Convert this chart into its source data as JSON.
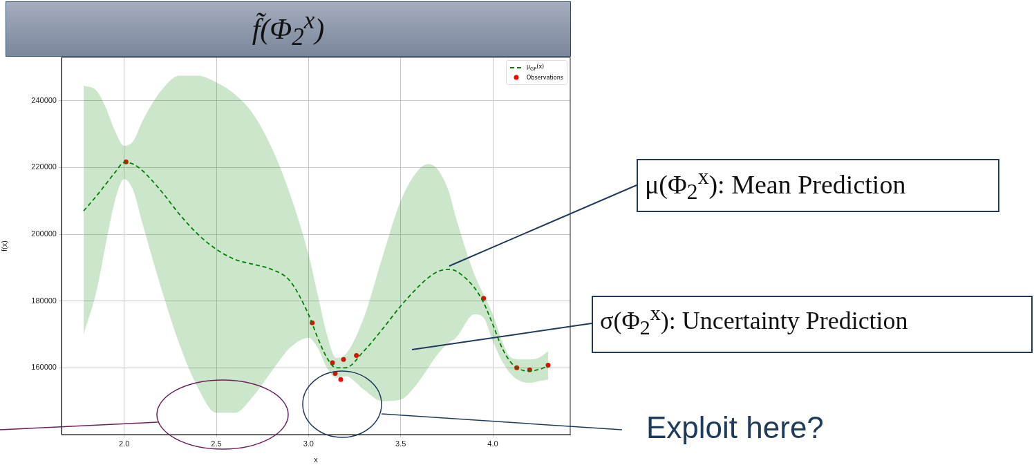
{
  "chart_data": {
    "type": "line",
    "title": "f̃(Φ$_{2}$$^{x}$)",
    "xlabel": "x",
    "ylabel": "f(x)",
    "xlim": [
      1.66,
      4.42
    ],
    "ylim": [
      140000,
      253000
    ],
    "xticks": [
      {
        "value": 2,
        "label": "2.0"
      },
      2.5,
      {
        "value": 3,
        "label": "3.0"
      },
      3.5,
      {
        "value": 4,
        "label": "4.0"
      }
    ],
    "yticks": [
      160000,
      180000,
      200000,
      220000,
      240000
    ],
    "grid": true,
    "legend": "top right",
    "series": [
      {
        "name": "μ$_{GP}$(x)",
        "type": "line",
        "color": "#008000",
        "line_style": "dashed",
        "marker": "none",
        "x": [
          1.78,
          1.85,
          1.9,
          1.95,
          2.0,
          2.05,
          2.1,
          2.2,
          2.3,
          2.4,
          2.5,
          2.6,
          2.7,
          2.8,
          2.9,
          3.0,
          3.05,
          3.1,
          3.15,
          3.2,
          3.3,
          3.4,
          3.5,
          3.6,
          3.65,
          3.7,
          3.76,
          3.8,
          3.9,
          3.95,
          4.0,
          4.05,
          4.1,
          4.15,
          4.2,
          4.25,
          4.3
        ],
        "values": [
          207000,
          211500,
          215000,
          218500,
          221500,
          221000,
          219000,
          213000,
          206000,
          200000,
          195500,
          192500,
          191000,
          189500,
          186000,
          176000,
          169000,
          163000,
          160000,
          160000,
          165000,
          171500,
          178500,
          184500,
          187000,
          188800,
          189500,
          189000,
          184000,
          179500,
          173000,
          166000,
          161500,
          159500,
          159000,
          159500,
          160500
        ],
        "upper": [
          244500,
          243000,
          238000,
          231000,
          226500,
          228000,
          234000,
          243000,
          247500,
          247500,
          245500,
          242000,
          236000,
          226000,
          212000,
          194000,
          182000,
          170000,
          163000,
          164000,
          175000,
          193000,
          210000,
          219500,
          221000,
          219500,
          213000,
          205000,
          188000,
          182000,
          176000,
          168000,
          163000,
          162500,
          162500,
          163000,
          165000
        ],
        "lower": [
          170000,
          183000,
          197000,
          210000,
          216500,
          213000,
          203000,
          184000,
          167000,
          154000,
          146500,
          146500,
          151500,
          159000,
          166000,
          169000,
          166000,
          160000,
          157000,
          157500,
          153500,
          150000,
          150500,
          156000,
          160000,
          164000,
          167500,
          169000,
          176000,
          175000,
          168000,
          162000,
          158000,
          156000,
          155500,
          156000,
          156500
        ]
      },
      {
        "name": "Observations",
        "type": "scatter",
        "color": "#ff0000",
        "marker": "circle",
        "x": [
          2.01,
          3.02,
          3.13,
          3.145,
          3.19,
          3.175,
          3.26,
          3.95,
          4.13,
          4.2,
          4.3
        ],
        "values": [
          221700,
          173500,
          161500,
          158300,
          162500,
          156500,
          163700,
          180800,
          160000,
          159400,
          160800
        ]
      }
    ],
    "annotations": [
      "μ(Φ$_{2}$$^{x}$): Mean Prediction",
      "σ(Φ$_{2}$$^{x}$): Uncertainty Prediction",
      "Exploit here?"
    ]
  }
}
